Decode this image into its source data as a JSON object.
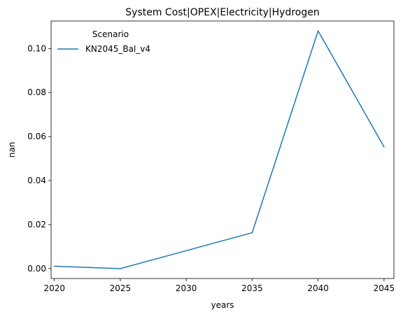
{
  "chart_data": {
    "type": "line",
    "title": "System Cost|OPEX|Electricity|Hydrogen",
    "xlabel": "years",
    "ylabel": "nan",
    "x": [
      2020,
      2025,
      2035,
      2040,
      2045
    ],
    "x_ticks": [
      2020,
      2025,
      2030,
      2035,
      2040,
      2045
    ],
    "y_ticks": [
      "0.00",
      "0.02",
      "0.04",
      "0.06",
      "0.08",
      "0.10"
    ],
    "xlim": [
      2019.75,
      2045.75
    ],
    "ylim": [
      -0.0045,
      0.1125
    ],
    "grid": false,
    "legend": {
      "title": "Scenario",
      "placement": "top-left"
    },
    "series": [
      {
        "name": "KN2045_Bal_v4",
        "color": "#1f77b4",
        "values": [
          0.0011,
          0.0,
          0.0163,
          0.108,
          0.0553
        ]
      }
    ]
  }
}
